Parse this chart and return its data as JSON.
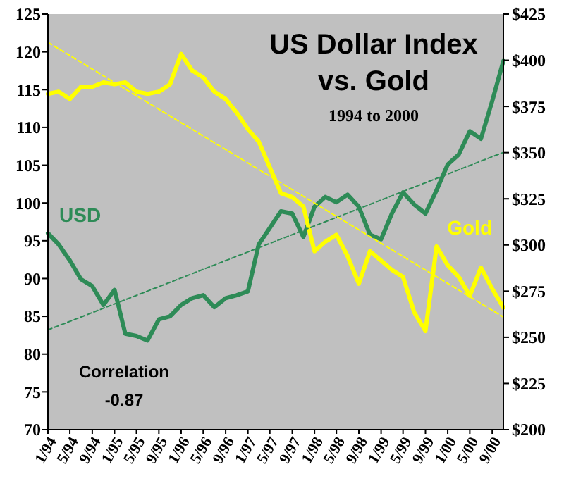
{
  "chart_data": {
    "type": "line",
    "title": "US Dollar Index vs. Gold",
    "subtitle": "1994 to 2000",
    "annotations": [
      "Correlation",
      "-0.87"
    ],
    "x": [
      "1994-01",
      "1994-03",
      "1994-05",
      "1994-07",
      "1994-09",
      "1994-11",
      "1995-01",
      "1995-03",
      "1995-05",
      "1995-07",
      "1995-09",
      "1995-11",
      "1996-01",
      "1996-03",
      "1996-05",
      "1996-07",
      "1996-09",
      "1996-11",
      "1997-01",
      "1997-03",
      "1997-05",
      "1997-07",
      "1997-09",
      "1997-11",
      "1998-01",
      "1998-03",
      "1998-05",
      "1998-07",
      "1998-09",
      "1998-11",
      "1999-01",
      "1999-03",
      "1999-05",
      "1999-07",
      "1999-09",
      "1999-11",
      "2000-01",
      "2000-03",
      "2000-05",
      "2000-07",
      "2000-09",
      "2000-11"
    ],
    "series": [
      {
        "name": "USD",
        "color": "#2e8b57",
        "values": [
          96.0,
          94.5,
          92.4,
          89.9,
          89.0,
          86.5,
          88.5,
          82.7,
          82.4,
          81.8,
          84.6,
          85.0,
          86.5,
          87.4,
          87.8,
          86.2,
          87.4,
          87.8,
          88.3,
          94.5,
          96.7,
          98.9,
          98.6,
          95.5,
          99.5,
          100.8,
          100.1,
          101.1,
          99.5,
          95.8,
          95.2,
          98.6,
          101.4,
          99.8,
          98.6,
          101.7,
          105.1,
          106.4,
          109.5,
          108.5,
          113.5,
          118.8
        ]
      },
      {
        "name": "Gold",
        "color": "#ffff00",
        "axis": "y2",
        "values": [
          381.8,
          383,
          379,
          385.6,
          385.6,
          388,
          387,
          388,
          383,
          381.8,
          383,
          387,
          403.4,
          394.5,
          390.7,
          383,
          379,
          371.6,
          362.7,
          356,
          342,
          328,
          325.9,
          320.8,
          296.6,
          301.7,
          305.5,
          294,
          279,
          296.6,
          291.5,
          286.5,
          282.7,
          263.6,
          253.4,
          299.2,
          289,
          282.7,
          272.5,
          287.7,
          276.3,
          266.1
        ]
      },
      {
        "type": "line",
        "color": "#2e8b57",
        "line_style": "dashed",
        "x": [
          "1994-01",
          "2000-11"
        ],
        "values": [
          83.2,
          106.7
        ]
      },
      {
        "type": "line",
        "color": "#ffff00",
        "line_style": "dashed",
        "axis": "y2",
        "x": [
          "1994-01",
          "2000-11"
        ],
        "values": [
          409.7,
          261
        ]
      }
    ],
    "xlim": [
      "1994-01",
      "2000-11"
    ],
    "xticks": [
      {
        "value": "1994-01",
        "label": "1/94"
      },
      {
        "value": "1994-05",
        "label": "5/94"
      },
      {
        "value": "1994-09",
        "label": "9/94"
      },
      {
        "value": "1995-01",
        "label": "1/95"
      },
      {
        "value": "1995-05",
        "label": "5/95"
      },
      {
        "value": "1995-09",
        "label": "9/95"
      },
      {
        "value": "1996-01",
        "label": "1/96"
      },
      {
        "value": "1996-05",
        "label": "5/96"
      },
      {
        "value": "1996-09",
        "label": "9/96"
      },
      {
        "value": "1997-01",
        "label": "1/97"
      },
      {
        "value": "1997-05",
        "label": "5/97"
      },
      {
        "value": "1997-09",
        "label": "9/97"
      },
      {
        "value": "1998-01",
        "label": "1/98"
      },
      {
        "value": "1998-05",
        "label": "5/98"
      },
      {
        "value": "1998-09",
        "label": "9/98"
      },
      {
        "value": "1999-01",
        "label": "1/99"
      },
      {
        "value": "1999-05",
        "label": "5/99"
      },
      {
        "value": "1999-09",
        "label": "9/99"
      },
      {
        "value": "2000-01",
        "label": "1/00"
      },
      {
        "value": "2000-05",
        "label": "5/00"
      },
      {
        "value": "2000-09",
        "label": "9/00"
      }
    ],
    "ylim": [
      70,
      125
    ],
    "yticks": [
      70,
      75,
      80,
      85,
      90,
      95,
      100,
      105,
      110,
      115,
      120,
      125
    ],
    "y2lim": [
      200,
      425
    ],
    "y2ticks": [
      {
        "value": 200,
        "label": "$200"
      },
      {
        "value": 225,
        "label": "$225"
      },
      {
        "value": 250,
        "label": "$250"
      },
      {
        "value": 275,
        "label": "$275"
      },
      {
        "value": 300,
        "label": "$300"
      },
      {
        "value": 325,
        "label": "$325"
      },
      {
        "value": 350,
        "label": "$350"
      },
      {
        "value": 375,
        "label": "$375"
      },
      {
        "value": 400,
        "label": "$400"
      },
      {
        "value": 425,
        "label": "$425"
      }
    ],
    "line_style": "solid"
  }
}
